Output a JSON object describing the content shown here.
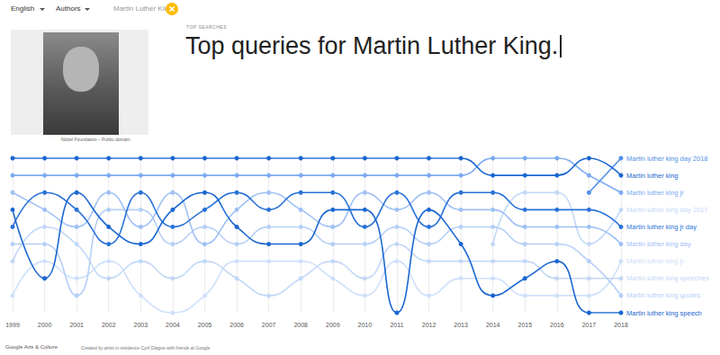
{
  "header": {
    "language": "English",
    "menu": "Authors",
    "search": "Martin Luther King"
  },
  "photo_credit": "Nobel Foundation – Public domain",
  "section_label": "TOP SEARCHES",
  "headline": "Top queries for Martin Luther King.",
  "chart_data": {
    "type": "bump",
    "categories": [
      "1999",
      "2000",
      "2001",
      "2002",
      "2003",
      "2004",
      "2005",
      "2006",
      "2007",
      "2008",
      "2009",
      "2010",
      "2011",
      "2012",
      "2013",
      "2014",
      "2015",
      "2016",
      "2017",
      "2018"
    ],
    "ylim": [
      1,
      10
    ],
    "grid": true,
    "tick_labels": "x",
    "marker": "circle",
    "series": [
      {
        "name": "Martin luther king day 2017",
        "color": "#c2d8f8",
        "values": [
          null,
          null,
          null,
          null,
          null,
          null,
          null,
          null,
          null,
          null,
          null,
          null,
          null,
          null,
          null,
          6,
          3,
          3,
          6,
          4
        ]
      },
      {
        "name": "Martin luther king jr.",
        "color": "#cfe0fa",
        "values": [
          9,
          7,
          8,
          7,
          9,
          10,
          9,
          7,
          7,
          7,
          8,
          9,
          7,
          9,
          8,
          8,
          9,
          9,
          9,
          7
        ]
      },
      {
        "name": "Martin luther king speeches",
        "color": "#c2d8f8",
        "values": [
          7,
          5,
          6,
          8,
          7,
          8,
          7,
          8,
          9,
          8,
          7,
          8,
          6,
          7,
          7,
          7,
          7,
          8,
          8,
          8
        ]
      },
      {
        "name": "Martin luther king quotes",
        "color": "#b5cff7",
        "values": [
          6,
          6,
          9,
          4,
          4,
          6,
          5,
          6,
          5,
          5,
          6,
          6,
          5,
          6,
          5,
          5,
          6,
          6,
          7,
          9
        ]
      },
      {
        "name": "Martin luther king day",
        "color": "#9fc0f5",
        "values": [
          3,
          4,
          5,
          3,
          5,
          3,
          6,
          4,
          3,
          4,
          5,
          3,
          4,
          3,
          4,
          4,
          5,
          5,
          5,
          6
        ]
      },
      {
        "name": "Martin luther king jr",
        "color": "#7baaf0",
        "values": [
          2,
          2,
          2,
          2,
          2,
          2,
          2,
          2,
          2,
          2,
          2,
          2,
          2,
          2,
          2,
          1,
          1,
          1,
          2,
          3
        ]
      },
      {
        "name": "Martin luther king day 2018",
        "color": "#4f8fe6",
        "values": [
          null,
          null,
          null,
          null,
          null,
          null,
          null,
          null,
          null,
          null,
          null,
          null,
          null,
          null,
          null,
          null,
          null,
          null,
          3,
          1
        ]
      },
      {
        "name": "Martin luther king jr day",
        "color": "#2a72d8",
        "values": [
          5,
          3,
          4,
          6,
          3,
          5,
          4,
          3,
          4,
          3,
          3,
          5,
          3,
          5,
          3,
          3,
          4,
          4,
          4,
          5
        ]
      },
      {
        "name": "Martin luther king speech",
        "color": "#1a66d0",
        "values": [
          4,
          8,
          3,
          5,
          6,
          4,
          3,
          5,
          6,
          6,
          4,
          4,
          10,
          4,
          6,
          9,
          8,
          7,
          10,
          10
        ]
      },
      {
        "name": "Martin luther king",
        "color": "#1a66d0",
        "values": [
          1,
          1,
          1,
          1,
          1,
          1,
          1,
          1,
          1,
          1,
          1,
          1,
          1,
          1,
          1,
          2,
          2,
          2,
          1,
          2
        ]
      }
    ]
  },
  "footer": {
    "brand": "Google Arts & Culture",
    "credit": "Created by artist in residence Cyril Diagne with friends at Google"
  }
}
